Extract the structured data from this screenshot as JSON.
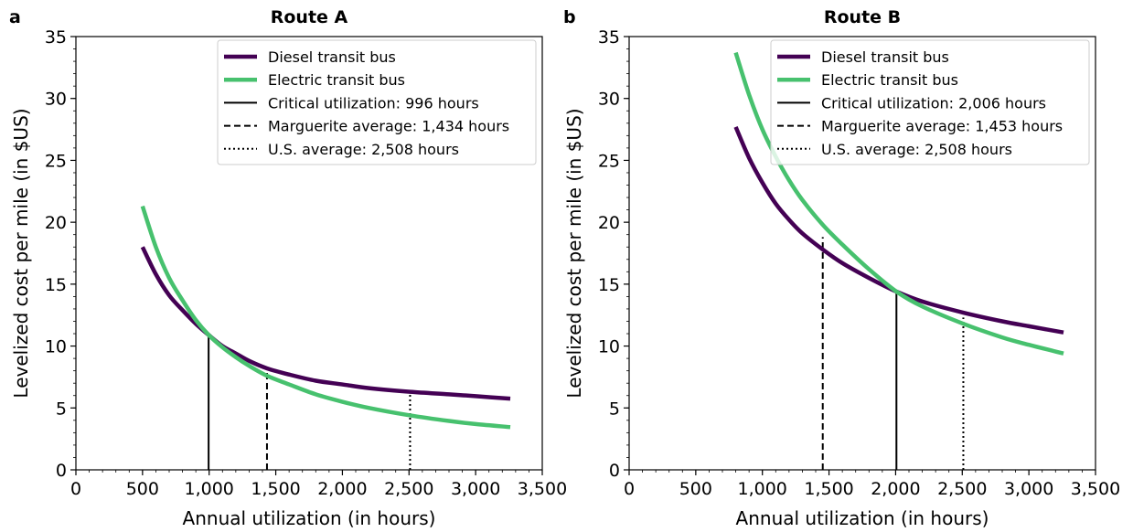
{
  "chart_data": [
    {
      "panel": "a",
      "title": "Route A",
      "type": "line",
      "xlabel": "Annual utilization (in hours)",
      "ylabel": "Levelized cost per mile (in $US)",
      "xlim": [
        0,
        3500
      ],
      "ylim": [
        0,
        35
      ],
      "x_ticks": [
        "0",
        "500",
        "1,000",
        "1,500",
        "2,000",
        "2,500",
        "3,000",
        "3,500"
      ],
      "y_ticks": [
        "0",
        "5",
        "10",
        "15",
        "20",
        "25",
        "30",
        "35"
      ],
      "grid": false,
      "legend_position": "top-right",
      "series": [
        {
          "name": "Diesel transit bus",
          "color": "#440154",
          "x": [
            500,
            600,
            700,
            800,
            900,
            996,
            1100,
            1200,
            1300,
            1434,
            1600,
            1800,
            2000,
            2200,
            2508,
            2800,
            3000,
            3260
          ],
          "y": [
            18.0,
            15.8,
            14.1,
            12.9,
            11.8,
            10.9,
            10.0,
            9.4,
            8.8,
            8.2,
            7.7,
            7.2,
            6.9,
            6.6,
            6.3,
            6.1,
            5.95,
            5.75
          ]
        },
        {
          "name": "Electric transit bus",
          "color": "#47C16E",
          "x": [
            500,
            600,
            700,
            800,
            900,
            996,
            1100,
            1200,
            1300,
            1434,
            1600,
            1800,
            2000,
            2200,
            2508,
            2800,
            3000,
            3260
          ],
          "y": [
            21.3,
            18.0,
            15.5,
            13.7,
            12.1,
            10.9,
            9.9,
            9.1,
            8.4,
            7.6,
            6.9,
            6.1,
            5.5,
            5.0,
            4.4,
            3.95,
            3.7,
            3.45
          ]
        }
      ],
      "reference_lines": [
        {
          "label": "Critical utilization: 996 hours",
          "x": 996,
          "y_top": 10.9,
          "style": "solid"
        },
        {
          "label": "Marguerite average: 1,434 hours",
          "x": 1434,
          "y_top": 8.1,
          "style": "dashed"
        },
        {
          "label": "U.S. average: 2,508 hours",
          "x": 2508,
          "y_top": 6.2,
          "style": "dotted"
        }
      ]
    },
    {
      "panel": "b",
      "title": "Route B",
      "type": "line",
      "xlabel": "Annual utilization (in hours)",
      "ylabel": "Levelized cost per mile (in $US)",
      "xlim": [
        0,
        3500
      ],
      "ylim": [
        0,
        35
      ],
      "x_ticks": [
        "0",
        "500",
        "1,000",
        "1,500",
        "2,000",
        "2,500",
        "3,000",
        "3,500"
      ],
      "y_ticks": [
        "0",
        "5",
        "10",
        "15",
        "20",
        "25",
        "30",
        "35"
      ],
      "grid": false,
      "legend_position": "top-right",
      "series": [
        {
          "name": "Diesel transit bus",
          "color": "#440154",
          "x": [
            800,
            900,
            1000,
            1100,
            1200,
            1300,
            1453,
            1600,
            1800,
            2006,
            2200,
            2508,
            2800,
            3000,
            3260
          ],
          "y": [
            27.7,
            25.2,
            23.2,
            21.5,
            20.2,
            19.1,
            17.8,
            16.7,
            15.5,
            14.4,
            13.6,
            12.7,
            12.0,
            11.6,
            11.1
          ]
        },
        {
          "name": "Electric transit bus",
          "color": "#47C16E",
          "x": [
            800,
            900,
            1000,
            1100,
            1200,
            1300,
            1453,
            1600,
            1800,
            2006,
            2200,
            2508,
            2800,
            3000,
            3260
          ],
          "y": [
            33.7,
            30.3,
            27.5,
            25.3,
            23.4,
            21.8,
            19.8,
            18.2,
            16.2,
            14.4,
            13.2,
            11.8,
            10.7,
            10.1,
            9.4
          ]
        }
      ],
      "reference_lines": [
        {
          "label": "Critical utilization: 2,006 hours",
          "x": 2006,
          "y_top": 14.4,
          "style": "solid"
        },
        {
          "label": "Marguerite average: 1,453 hours",
          "x": 1453,
          "y_top": 18.8,
          "style": "dashed"
        },
        {
          "label": "U.S. average: 2,508 hours",
          "x": 2508,
          "y_top": 12.3,
          "style": "dotted"
        }
      ]
    }
  ]
}
